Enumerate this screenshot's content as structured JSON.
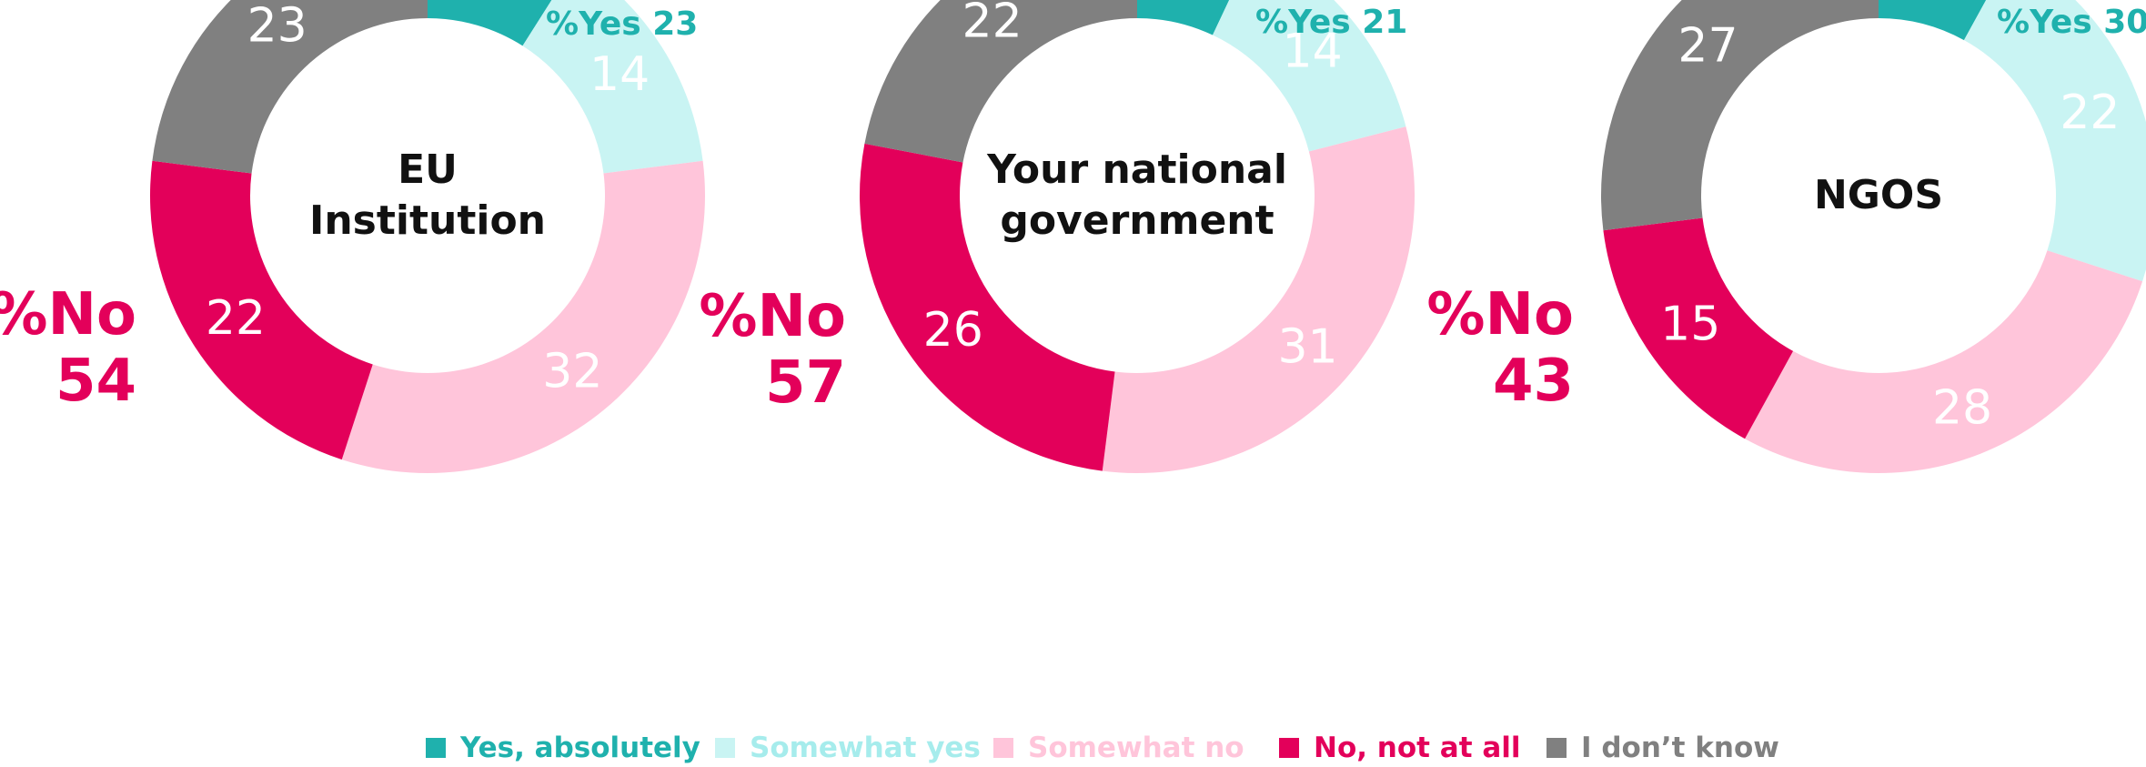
{
  "chart_data": {
    "type": "pie",
    "variant": "donut",
    "categories": [
      "Yes, absolutely",
      "Somewhat yes",
      "Somewhat no",
      "No, not at all",
      "I don’t know"
    ],
    "colors": [
      "#1fb1ad",
      "#c9f4f3",
      "#ffc5da",
      "#e3005a",
      "#808080"
    ],
    "label_colors": [
      "#ffffff",
      "#ffffff",
      "#ffffff",
      "#ffffff",
      "#ffffff"
    ],
    "legend_text_colors": [
      "#1fb1ad",
      "#a6ecec",
      "#ffc5da",
      "#e3005a",
      "#808080"
    ],
    "legend_position": "bottom",
    "charts": [
      {
        "title_lines": [
          "EU",
          "Institution"
        ],
        "values": [
          9,
          14,
          32,
          22,
          23
        ],
        "yes_label": "%Yes 23",
        "no_label": "%No",
        "no_value": "54"
      },
      {
        "title_lines": [
          "Your national",
          "government"
        ],
        "values": [
          7,
          14,
          31,
          26,
          22
        ],
        "yes_label": "%Yes 21",
        "no_label": "%No",
        "no_value": "57"
      },
      {
        "title_lines": [
          "NGOS"
        ],
        "values": [
          8,
          22,
          28,
          15,
          27
        ],
        "yes_label": "%Yes 30",
        "no_label": "%No",
        "no_value": "43"
      }
    ],
    "accent_yes": "#1fb1ad",
    "accent_no": "#e3005a"
  }
}
